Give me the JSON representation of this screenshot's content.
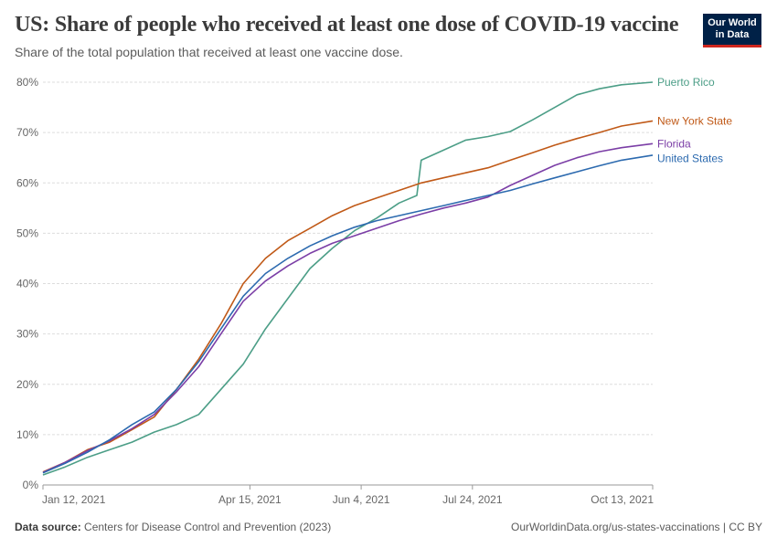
{
  "header": {
    "title": "US: Share of people who received at least one dose of COVID-19 vaccine",
    "subtitle": "Share of the total population that received at least one vaccine dose."
  },
  "logo": {
    "line1": "Our World",
    "line2": "in Data"
  },
  "footer": {
    "source_label": "Data source:",
    "source_text": "Centers for Disease Control and Prevention (2023)",
    "url": "OurWorldinData.org/us-states-vaccinations | CC BY"
  },
  "colors": {
    "puerto_rico": "#4c9e87",
    "new_york_state": "#c05917",
    "florida": "#7b3ea6",
    "united_states": "#2c6aaf",
    "grid": "#dddddd",
    "axis_text": "#666666"
  },
  "chart_data": {
    "type": "line",
    "title": "US: Share of people who received at least one dose of COVID-19 vaccine",
    "ylabel": "",
    "xlabel": "",
    "ylim": [
      0,
      80
    ],
    "x_range_days": [
      0,
      274
    ],
    "x_ticks": [
      {
        "day": 0,
        "label": "Jan 12, 2021"
      },
      {
        "day": 93,
        "label": "Apr 15, 2021"
      },
      {
        "day": 143,
        "label": "Jun 4, 2021"
      },
      {
        "day": 193,
        "label": "Jul 24, 2021"
      },
      {
        "day": 274,
        "label": "Oct 13, 2021"
      }
    ],
    "y_ticks": [
      {
        "value": 0,
        "label": "0%"
      },
      {
        "value": 10,
        "label": "10%"
      },
      {
        "value": 20,
        "label": "20%"
      },
      {
        "value": 30,
        "label": "30%"
      },
      {
        "value": 40,
        "label": "40%"
      },
      {
        "value": 50,
        "label": "50%"
      },
      {
        "value": 60,
        "label": "60%"
      },
      {
        "value": 70,
        "label": "70%"
      },
      {
        "value": 80,
        "label": "80%"
      }
    ],
    "series": [
      {
        "name": "Puerto Rico",
        "color": "#4c9e87",
        "points": [
          [
            0,
            2
          ],
          [
            10,
            3.6
          ],
          [
            20,
            5.5
          ],
          [
            30,
            7
          ],
          [
            40,
            8.5
          ],
          [
            50,
            10.5
          ],
          [
            60,
            12
          ],
          [
            70,
            14
          ],
          [
            80,
            19
          ],
          [
            90,
            24
          ],
          [
            100,
            31
          ],
          [
            110,
            37
          ],
          [
            120,
            43
          ],
          [
            130,
            47
          ],
          [
            140,
            50.5
          ],
          [
            150,
            53
          ],
          [
            160,
            56
          ],
          [
            168,
            57.5
          ],
          [
            170,
            64.5
          ],
          [
            180,
            66.5
          ],
          [
            190,
            68.5
          ],
          [
            200,
            69.2
          ],
          [
            210,
            70.2
          ],
          [
            220,
            72.5
          ],
          [
            230,
            75
          ],
          [
            240,
            77.5
          ],
          [
            250,
            78.7
          ],
          [
            260,
            79.5
          ],
          [
            274,
            80
          ]
        ]
      },
      {
        "name": "New York State",
        "color": "#c05917",
        "points": [
          [
            0,
            2.6
          ],
          [
            10,
            4.5
          ],
          [
            20,
            7
          ],
          [
            30,
            8.5
          ],
          [
            40,
            11
          ],
          [
            50,
            13.5
          ],
          [
            60,
            19
          ],
          [
            70,
            25
          ],
          [
            80,
            32
          ],
          [
            90,
            40
          ],
          [
            100,
            45
          ],
          [
            110,
            48.5
          ],
          [
            120,
            51
          ],
          [
            130,
            53.5
          ],
          [
            140,
            55.5
          ],
          [
            150,
            57
          ],
          [
            160,
            58.5
          ],
          [
            170,
            60
          ],
          [
            180,
            61
          ],
          [
            190,
            62
          ],
          [
            200,
            63
          ],
          [
            210,
            64.5
          ],
          [
            220,
            66
          ],
          [
            230,
            67.5
          ],
          [
            240,
            68.8
          ],
          [
            250,
            70
          ],
          [
            260,
            71.3
          ],
          [
            274,
            72.3
          ]
        ]
      },
      {
        "name": "Florida",
        "color": "#7b3ea6",
        "points": [
          [
            0,
            2.5
          ],
          [
            10,
            4.5
          ],
          [
            20,
            6.8
          ],
          [
            30,
            8.8
          ],
          [
            40,
            11.2
          ],
          [
            50,
            14
          ],
          [
            60,
            18.5
          ],
          [
            70,
            23.5
          ],
          [
            80,
            30
          ],
          [
            90,
            36.5
          ],
          [
            100,
            40.5
          ],
          [
            110,
            43.5
          ],
          [
            120,
            46
          ],
          [
            130,
            48
          ],
          [
            140,
            49.5
          ],
          [
            150,
            51
          ],
          [
            160,
            52.5
          ],
          [
            170,
            53.8
          ],
          [
            180,
            55
          ],
          [
            190,
            56
          ],
          [
            200,
            57.2
          ],
          [
            210,
            59.5
          ],
          [
            220,
            61.5
          ],
          [
            230,
            63.5
          ],
          [
            240,
            65
          ],
          [
            250,
            66.2
          ],
          [
            260,
            67
          ],
          [
            274,
            67.8
          ]
        ]
      },
      {
        "name": "United States",
        "color": "#2c6aaf",
        "points": [
          [
            0,
            2.4
          ],
          [
            10,
            4.3
          ],
          [
            20,
            6.5
          ],
          [
            30,
            9
          ],
          [
            40,
            12
          ],
          [
            50,
            14.5
          ],
          [
            60,
            19
          ],
          [
            70,
            24.5
          ],
          [
            80,
            31
          ],
          [
            90,
            37.5
          ],
          [
            100,
            42
          ],
          [
            110,
            45
          ],
          [
            120,
            47.5
          ],
          [
            130,
            49.5
          ],
          [
            140,
            51.2
          ],
          [
            150,
            52.5
          ],
          [
            160,
            53.5
          ],
          [
            170,
            54.5
          ],
          [
            180,
            55.5
          ],
          [
            190,
            56.5
          ],
          [
            200,
            57.5
          ],
          [
            210,
            58.5
          ],
          [
            220,
            59.8
          ],
          [
            230,
            61
          ],
          [
            240,
            62.2
          ],
          [
            250,
            63.4
          ],
          [
            260,
            64.5
          ],
          [
            274,
            65.5
          ]
        ]
      }
    ],
    "legend_position": "right, labels at line ends"
  }
}
